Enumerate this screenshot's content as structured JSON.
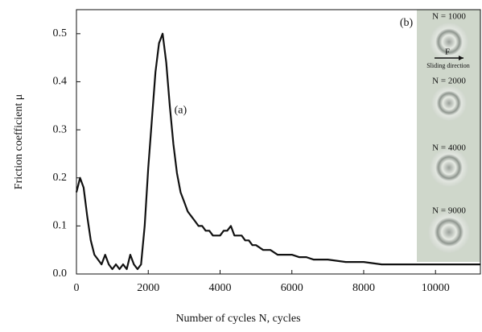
{
  "chart_data": {
    "type": "line",
    "x_label": "Number of cycles N, cycles",
    "y_label": "Friction coefficient  μ",
    "xlim": [
      0,
      11250
    ],
    "ylim": [
      0,
      0.55
    ],
    "xticks": [
      0,
      2000,
      4000,
      6000,
      8000,
      10000
    ],
    "yticks": [
      {
        "value": 0,
        "label": "0.0"
      },
      0.1,
      0.2,
      0.3,
      0.4,
      0.5
    ],
    "series": [
      {
        "color": "#111111",
        "x": [
          0,
          100,
          200,
          300,
          400,
          500,
          600,
          700,
          800,
          900,
          1000,
          1100,
          1200,
          1300,
          1400,
          1500,
          1600,
          1700,
          1800,
          1900,
          2000,
          2100,
          2200,
          2300,
          2400,
          2500,
          2600,
          2700,
          2800,
          2900,
          3000,
          3100,
          3200,
          3300,
          3400,
          3500,
          3600,
          3700,
          3800,
          3900,
          4000,
          4100,
          4200,
          4300,
          4400,
          4500,
          4600,
          4700,
          4800,
          4900,
          5000,
          5200,
          5400,
          5600,
          5800,
          6000,
          6200,
          6400,
          6600,
          6800,
          7000,
          7500,
          8000,
          8500,
          9000,
          9500,
          10000,
          10500,
          11000,
          11250
        ],
        "values": [
          0.17,
          0.2,
          0.18,
          0.12,
          0.07,
          0.04,
          0.03,
          0.02,
          0.04,
          0.02,
          0.01,
          0.02,
          0.01,
          0.02,
          0.01,
          0.04,
          0.02,
          0.01,
          0.02,
          0.1,
          0.22,
          0.32,
          0.42,
          0.48,
          0.5,
          0.44,
          0.35,
          0.27,
          0.21,
          0.17,
          0.15,
          0.13,
          0.12,
          0.11,
          0.1,
          0.1,
          0.09,
          0.09,
          0.08,
          0.08,
          0.08,
          0.09,
          0.09,
          0.1,
          0.08,
          0.08,
          0.08,
          0.07,
          0.07,
          0.06,
          0.06,
          0.05,
          0.05,
          0.04,
          0.04,
          0.04,
          0.035,
          0.035,
          0.03,
          0.03,
          0.03,
          0.025,
          0.025,
          0.02,
          0.02,
          0.02,
          0.02,
          0.02,
          0.02,
          0.02
        ]
      }
    ],
    "annotations": [
      {
        "text": "(a)",
        "x": 2900,
        "y": 0.34
      }
    ],
    "inset": {
      "label": "(b)",
      "panels": [
        "N = 1000",
        "N = 2000",
        "N = 4000",
        "N = 9000"
      ],
      "arrow_label": "F",
      "direction_label": "Sliding direction"
    }
  }
}
